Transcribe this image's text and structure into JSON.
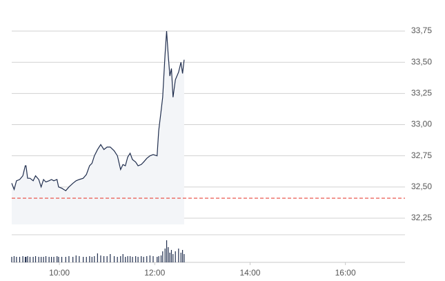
{
  "chart_data": {
    "type": "line",
    "x": [
      540,
      543,
      546,
      550,
      554,
      557,
      558,
      560,
      563,
      567,
      570,
      574,
      577,
      580,
      583,
      587,
      590,
      593,
      597,
      599,
      603,
      608,
      612,
      617,
      621,
      625,
      630,
      634,
      638,
      641,
      644,
      648,
      652,
      656,
      660,
      664,
      669,
      673,
      677,
      680,
      683,
      686,
      689,
      692,
      696,
      699,
      703,
      706,
      710,
      714,
      718,
      723,
      725,
      728,
      730,
      733,
      735,
      737,
      739,
      741,
      743,
      746,
      750,
      753,
      755,
      757
    ],
    "series": [
      {
        "color": "#1f2d4d",
        "fill": "#f3f5f8",
        "values": [
          32.53,
          32.48,
          32.55,
          32.56,
          32.59,
          32.67,
          32.67,
          32.57,
          32.57,
          32.55,
          32.59,
          32.56,
          32.5,
          32.56,
          32.54,
          32.55,
          32.56,
          32.55,
          32.56,
          32.5,
          32.49,
          32.47,
          32.5,
          32.53,
          32.55,
          32.56,
          32.57,
          32.6,
          32.67,
          32.69,
          32.75,
          32.8,
          32.84,
          32.8,
          32.82,
          32.82,
          32.79,
          32.75,
          32.64,
          32.68,
          32.67,
          32.74,
          32.77,
          32.72,
          32.7,
          32.67,
          32.68,
          32.7,
          32.73,
          32.75,
          32.76,
          32.75,
          32.95,
          33.11,
          33.22,
          33.56,
          33.75,
          33.56,
          33.39,
          33.45,
          33.22,
          33.36,
          33.42,
          33.5,
          33.41,
          33.52
        ]
      }
    ],
    "volume": {
      "color": "#1f2d4d",
      "ylim": [
        0,
        40
      ],
      "values": [
        8,
        9,
        8,
        8,
        9,
        8,
        8,
        9,
        8,
        8,
        9,
        8,
        8,
        8,
        9,
        8,
        8,
        8,
        9,
        8,
        8,
        8,
        9,
        8,
        10,
        9,
        8,
        8,
        9,
        8,
        9,
        13,
        10,
        9,
        9,
        12,
        9,
        8,
        9,
        12,
        8,
        9,
        9,
        8,
        9,
        8,
        9,
        8,
        9,
        10,
        9,
        8,
        9,
        10,
        16,
        20,
        32,
        22,
        14,
        18,
        12,
        16,
        20,
        14,
        18,
        12
      ]
    },
    "reference_line": {
      "value": 32.41,
      "color": "#e8443a"
    },
    "xlim": [
      540,
      1035
    ],
    "ylim": [
      32.2,
      33.8
    ],
    "xticks": [
      {
        "value": 600,
        "label": "10:00"
      },
      {
        "value": 720,
        "label": "12:00"
      },
      {
        "value": 840,
        "label": "14:00"
      },
      {
        "value": 960,
        "label": "16:00"
      }
    ],
    "yticks": [
      {
        "value": 32.25,
        "label": "32,25"
      },
      {
        "value": 32.5,
        "label": "32,50"
      },
      {
        "value": 32.75,
        "label": "32,75"
      },
      {
        "value": 33.0,
        "label": "33,00"
      },
      {
        "value": 33.25,
        "label": "33,25"
      },
      {
        "value": 33.5,
        "label": "33,50"
      },
      {
        "value": 33.75,
        "label": "33,75"
      }
    ],
    "grid": true
  }
}
